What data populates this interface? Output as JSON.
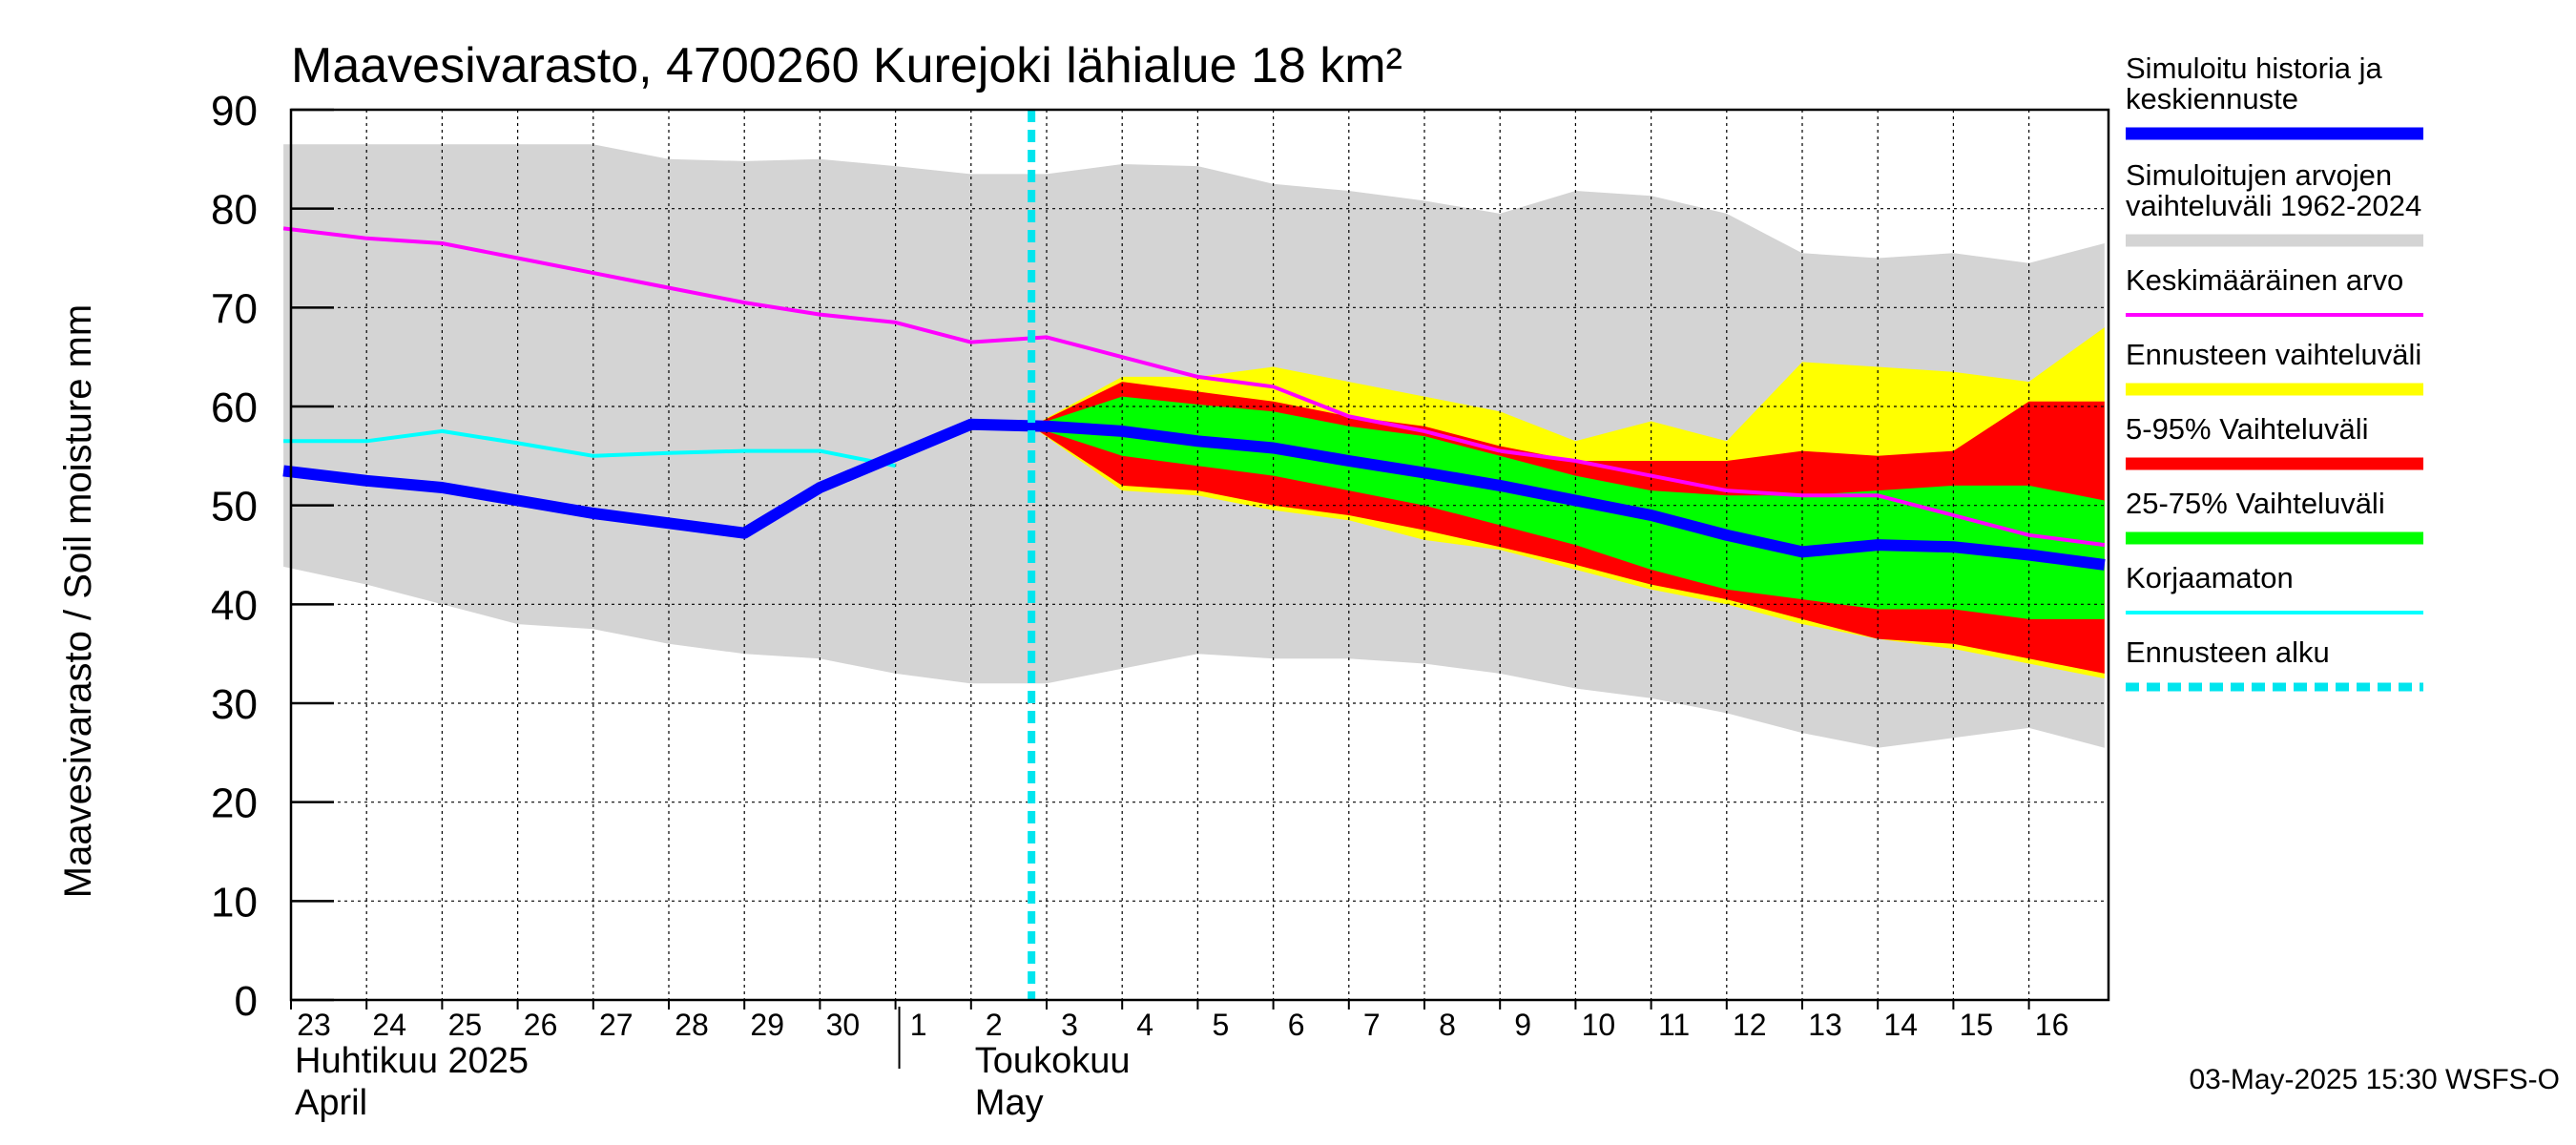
{
  "chart_data": {
    "type": "area",
    "title": "Maavesivarasto, 4700260 Kurejoki lähialue 18 km²",
    "ylabel": "Maavesivarasto / Soil moisture   mm",
    "ylim": [
      0,
      90
    ],
    "yticks": [
      0,
      10,
      20,
      30,
      40,
      50,
      60,
      70,
      80,
      90
    ],
    "grid": true,
    "x_day_labels": [
      "23",
      "24",
      "25",
      "26",
      "27",
      "28",
      "29",
      "30",
      "1",
      "2",
      "3",
      "4",
      "5",
      "6",
      "7",
      "8",
      "9",
      "10",
      "11",
      "12",
      "13",
      "14",
      "15",
      "16"
    ],
    "month_labels": [
      {
        "line1": "Huhtikuu  2025",
        "line2": "April",
        "start_day_index": 0
      },
      {
        "line1": "Toukokuu",
        "line2": "May",
        "start_day_index": 9
      }
    ],
    "forecast_start_day_index": 9.8,
    "series": [
      {
        "name": "hist_range",
        "kind": "band",
        "color": "#d4d4d4",
        "upper": [
          [
            -0.1,
            86.5
          ],
          [
            1,
            86.5
          ],
          [
            2,
            86.5
          ],
          [
            3,
            86.5
          ],
          [
            4,
            86.5
          ],
          [
            5,
            85
          ],
          [
            6,
            84.8
          ],
          [
            7,
            85
          ],
          [
            8,
            84.3
          ],
          [
            9,
            83.5
          ],
          [
            10,
            83.5
          ],
          [
            11,
            84.5
          ],
          [
            12,
            84.3
          ],
          [
            13,
            82.5
          ],
          [
            14,
            81.8
          ],
          [
            15,
            80.8
          ],
          [
            16,
            79.5
          ],
          [
            17,
            81.8
          ],
          [
            18,
            81.3
          ],
          [
            19,
            79.5
          ],
          [
            20,
            75.5
          ],
          [
            21,
            75
          ],
          [
            22,
            75.5
          ],
          [
            23,
            74.5
          ],
          [
            24,
            76.5
          ]
        ],
        "lower": [
          [
            -0.1,
            43.8
          ],
          [
            1,
            42
          ],
          [
            2,
            40
          ],
          [
            3,
            38
          ],
          [
            4,
            37.5
          ],
          [
            5,
            36
          ],
          [
            6,
            35
          ],
          [
            7,
            34.5
          ],
          [
            8,
            33
          ],
          [
            9,
            32
          ],
          [
            10,
            32
          ],
          [
            11,
            33.5
          ],
          [
            12,
            35
          ],
          [
            13,
            34.5
          ],
          [
            14,
            34.5
          ],
          [
            15,
            34
          ],
          [
            16,
            33
          ],
          [
            17,
            31.5
          ],
          [
            18,
            30.5
          ],
          [
            19,
            29
          ],
          [
            20,
            27
          ],
          [
            21,
            25.5
          ],
          [
            22,
            26.5
          ],
          [
            23,
            27.5
          ],
          [
            24,
            25.5
          ]
        ]
      },
      {
        "name": "fc_range",
        "kind": "band",
        "color": "#ffff00",
        "upper": [
          [
            9.8,
            58
          ],
          [
            11,
            63
          ],
          [
            12,
            63
          ],
          [
            13,
            64
          ],
          [
            14,
            62.5
          ],
          [
            15,
            61
          ],
          [
            16,
            59.5
          ],
          [
            17,
            56.5
          ],
          [
            18,
            58.5
          ],
          [
            19,
            56.5
          ],
          [
            20,
            64.5
          ],
          [
            21,
            64
          ],
          [
            22,
            63.5
          ],
          [
            23,
            62.5
          ],
          [
            24,
            68
          ]
        ],
        "lower": [
          [
            9.8,
            58
          ],
          [
            11,
            51.5
          ],
          [
            12,
            51
          ],
          [
            13,
            49.5
          ],
          [
            14,
            48.5
          ],
          [
            15,
            46.5
          ],
          [
            16,
            45.5
          ],
          [
            17,
            43.5
          ],
          [
            18,
            41.5
          ],
          [
            19,
            40
          ],
          [
            20,
            38
          ],
          [
            21,
            36.5
          ],
          [
            22,
            35.5
          ],
          [
            23,
            34
          ],
          [
            24,
            32.5
          ]
        ]
      },
      {
        "name": "p5_95",
        "kind": "band",
        "color": "#ff0000",
        "upper": [
          [
            9.8,
            58
          ],
          [
            11,
            62.5
          ],
          [
            12,
            61.5
          ],
          [
            13,
            60.5
          ],
          [
            14,
            59
          ],
          [
            15,
            58
          ],
          [
            16,
            56
          ],
          [
            17,
            54.5
          ],
          [
            18,
            54.5
          ],
          [
            19,
            54.5
          ],
          [
            20,
            55.5
          ],
          [
            21,
            55
          ],
          [
            22,
            55.5
          ],
          [
            23,
            60.5
          ],
          [
            24,
            60.5
          ]
        ],
        "lower": [
          [
            9.8,
            58
          ],
          [
            11,
            52
          ],
          [
            12,
            51.5
          ],
          [
            13,
            50
          ],
          [
            14,
            49
          ],
          [
            15,
            47.5
          ],
          [
            16,
            45.8
          ],
          [
            17,
            44
          ],
          [
            18,
            42
          ],
          [
            19,
            40.5
          ],
          [
            20,
            38.5
          ],
          [
            21,
            36.5
          ],
          [
            22,
            36
          ],
          [
            23,
            34.5
          ],
          [
            24,
            33
          ]
        ]
      },
      {
        "name": "p25_75",
        "kind": "band",
        "color": "#00ff00",
        "upper": [
          [
            9.8,
            58
          ],
          [
            11,
            61
          ],
          [
            12,
            60.2
          ],
          [
            13,
            59.5
          ],
          [
            14,
            58
          ],
          [
            15,
            57
          ],
          [
            16,
            55
          ],
          [
            17,
            53
          ],
          [
            18,
            51.5
          ],
          [
            19,
            51
          ],
          [
            20,
            51
          ],
          [
            21,
            51.5
          ],
          [
            22,
            52
          ],
          [
            23,
            52
          ],
          [
            24,
            50.5
          ]
        ],
        "lower": [
          [
            9.8,
            58
          ],
          [
            11,
            55
          ],
          [
            12,
            54
          ],
          [
            13,
            53
          ],
          [
            14,
            51.5
          ],
          [
            15,
            50
          ],
          [
            16,
            48
          ],
          [
            17,
            46
          ],
          [
            18,
            43.5
          ],
          [
            19,
            41.5
          ],
          [
            20,
            40.5
          ],
          [
            21,
            39.5
          ],
          [
            22,
            39.5
          ],
          [
            23,
            38.5
          ],
          [
            24,
            38.5
          ]
        ]
      },
      {
        "name": "Keskimääräinen arvo",
        "kind": "line",
        "color": "#ff00ff",
        "width": 4,
        "points": [
          [
            -0.1,
            78
          ],
          [
            1,
            77
          ],
          [
            2,
            76.5
          ],
          [
            3,
            75
          ],
          [
            4,
            73.5
          ],
          [
            5,
            72
          ],
          [
            6,
            70.5
          ],
          [
            7,
            69.3
          ],
          [
            8,
            68.5
          ],
          [
            9,
            66.5
          ],
          [
            10,
            67
          ],
          [
            11,
            65
          ],
          [
            12,
            63
          ],
          [
            13,
            62
          ],
          [
            14,
            59
          ],
          [
            15,
            57.5
          ],
          [
            16,
            55.5
          ],
          [
            17,
            54.5
          ],
          [
            18,
            53
          ],
          [
            19,
            51.5
          ],
          [
            20,
            51
          ],
          [
            21,
            51
          ],
          [
            22,
            49
          ],
          [
            23,
            47
          ],
          [
            24,
            46
          ]
        ]
      },
      {
        "name": "Korjaamaton",
        "kind": "line",
        "color": "#00ffff",
        "width": 4,
        "points": [
          [
            -0.1,
            56.5
          ],
          [
            1,
            56.5
          ],
          [
            2,
            57.5
          ],
          [
            3,
            56.3
          ],
          [
            4,
            55
          ],
          [
            5,
            55.3
          ],
          [
            6,
            55.5
          ],
          [
            7,
            55.5
          ],
          [
            8,
            54
          ]
        ]
      },
      {
        "name": "Simuloitu historia ja keskiennuste",
        "kind": "line",
        "color": "#0000ff",
        "width": 12,
        "points": [
          [
            -0.1,
            53.5
          ],
          [
            1,
            52.5
          ],
          [
            2,
            51.8
          ],
          [
            3,
            50.5
          ],
          [
            4,
            49.2
          ],
          [
            5,
            48.2
          ],
          [
            6,
            47.2
          ],
          [
            7,
            51.8
          ],
          [
            8,
            55
          ],
          [
            9,
            58.2
          ],
          [
            10,
            58
          ],
          [
            11,
            57.5
          ],
          [
            12,
            56.5
          ],
          [
            13,
            55.8
          ],
          [
            14,
            54.5
          ],
          [
            15,
            53.3
          ],
          [
            16,
            52
          ],
          [
            17,
            50.5
          ],
          [
            18,
            49
          ],
          [
            19,
            47
          ],
          [
            20,
            45.3
          ],
          [
            21,
            46
          ],
          [
            22,
            45.8
          ],
          [
            23,
            45
          ],
          [
            24,
            44
          ]
        ]
      }
    ],
    "legend": {
      "placement": "right",
      "items": [
        {
          "label": "Simuloitu historia ja keskiennuste",
          "color": "#0000ff",
          "style": "thick"
        },
        {
          "label": "Simuloitujen arvojen vaihteluväli 1962-2024",
          "color": "#d4d4d4",
          "style": "thick"
        },
        {
          "label": "Keskimääräinen arvo",
          "color": "#ff00ff",
          "style": "thin"
        },
        {
          "label": "Ennusteen vaihteluväli",
          "color": "#ffff00",
          "style": "thick"
        },
        {
          "label": "5-95% Vaihteluväli",
          "color": "#ff0000",
          "style": "thick"
        },
        {
          "label": "25-75% Vaihteluväli",
          "color": "#00ff00",
          "style": "thick"
        },
        {
          "label": "Korjaamaton",
          "color": "#00ffff",
          "style": "thin"
        },
        {
          "label": "Ennusteen alku",
          "color": "#00e5ee",
          "style": "dashed"
        }
      ]
    },
    "footer": "03-May-2025 15:30 WSFS-O"
  }
}
